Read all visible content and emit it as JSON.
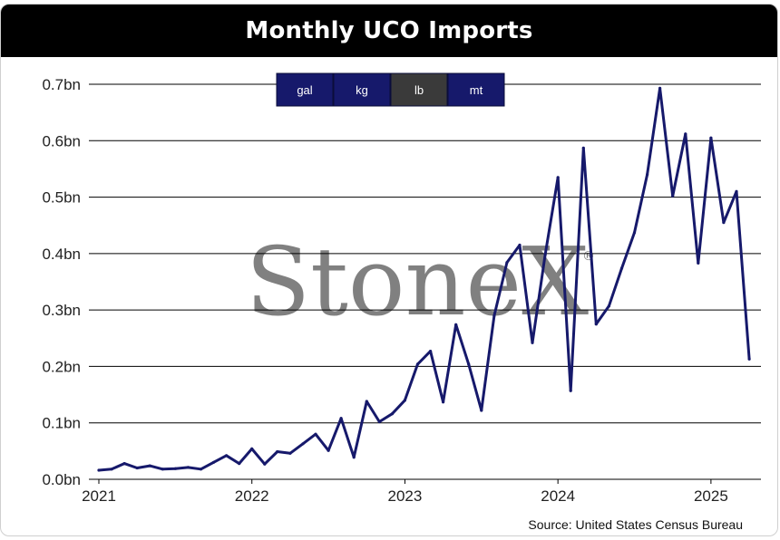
{
  "title": "Monthly UCO Imports",
  "source": "Source: United States Census Bureau",
  "watermark": "StoneX",
  "watermark_mark": "®",
  "unit_buttons": [
    {
      "label": "gal",
      "selected": false
    },
    {
      "label": "kg",
      "selected": false
    },
    {
      "label": "lb",
      "selected": true
    },
    {
      "label": "mt",
      "selected": false
    }
  ],
  "colors": {
    "line": "#16196b",
    "button": "#16196b",
    "button_selected": "#3a3a3a",
    "watermark": "#7a7a7a"
  },
  "chart_data": {
    "type": "line",
    "title": "Monthly UCO Imports",
    "xlabel": "",
    "ylabel": "",
    "ylim": [
      0,
      0.7
    ],
    "yticks": [
      {
        "value": 0.0,
        "label": "0.0bn"
      },
      {
        "value": 0.1,
        "label": "0.1bn"
      },
      {
        "value": 0.2,
        "label": "0.2bn"
      },
      {
        "value": 0.3,
        "label": "0.3bn"
      },
      {
        "value": 0.4,
        "label": "0.4bn"
      },
      {
        "value": 0.5,
        "label": "0.5bn"
      },
      {
        "value": 0.6,
        "label": "0.6bn"
      },
      {
        "value": 0.7,
        "label": "0.7bn"
      }
    ],
    "xticks": [
      "2021",
      "2022",
      "2023",
      "2024",
      "2025"
    ],
    "grid": true,
    "series": [
      {
        "x": [
          "2021-01",
          "2021-02",
          "2021-03",
          "2021-04",
          "2021-05",
          "2021-06",
          "2021-07",
          "2021-08",
          "2021-09",
          "2021-10",
          "2021-11",
          "2021-12",
          "2022-01",
          "2022-02",
          "2022-03",
          "2022-04",
          "2022-05",
          "2022-06",
          "2022-07",
          "2022-08",
          "2022-09",
          "2022-10",
          "2022-11",
          "2022-12",
          "2023-01",
          "2023-02",
          "2023-03",
          "2023-04",
          "2023-05",
          "2023-06",
          "2023-07",
          "2023-08",
          "2023-09",
          "2023-10",
          "2023-11",
          "2023-12",
          "2024-01",
          "2024-02",
          "2024-03",
          "2024-04",
          "2024-05",
          "2024-06",
          "2024-07",
          "2024-08",
          "2024-09",
          "2024-10",
          "2024-11",
          "2024-12",
          "2025-01",
          "2025-02",
          "2025-03",
          "2025-04",
          "2025-05"
        ],
        "values": [
          0.016,
          0.018,
          0.028,
          0.02,
          0.024,
          0.018,
          0.019,
          0.021,
          0.018,
          0.03,
          0.042,
          0.028,
          0.054,
          0.027,
          0.049,
          0.046,
          0.063,
          0.08,
          0.051,
          0.108,
          0.039,
          0.138,
          0.102,
          0.116,
          0.14,
          0.204,
          0.227,
          0.137,
          0.274,
          0.204,
          0.122,
          0.29,
          0.384,
          0.415,
          0.242,
          0.398,
          0.535,
          0.157,
          0.587,
          0.275,
          0.307,
          0.374,
          0.437,
          0.54,
          0.693,
          0.502,
          0.612,
          0.383,
          0.605,
          0.455,
          0.51,
          0.213,
          null
        ]
      }
    ]
  }
}
